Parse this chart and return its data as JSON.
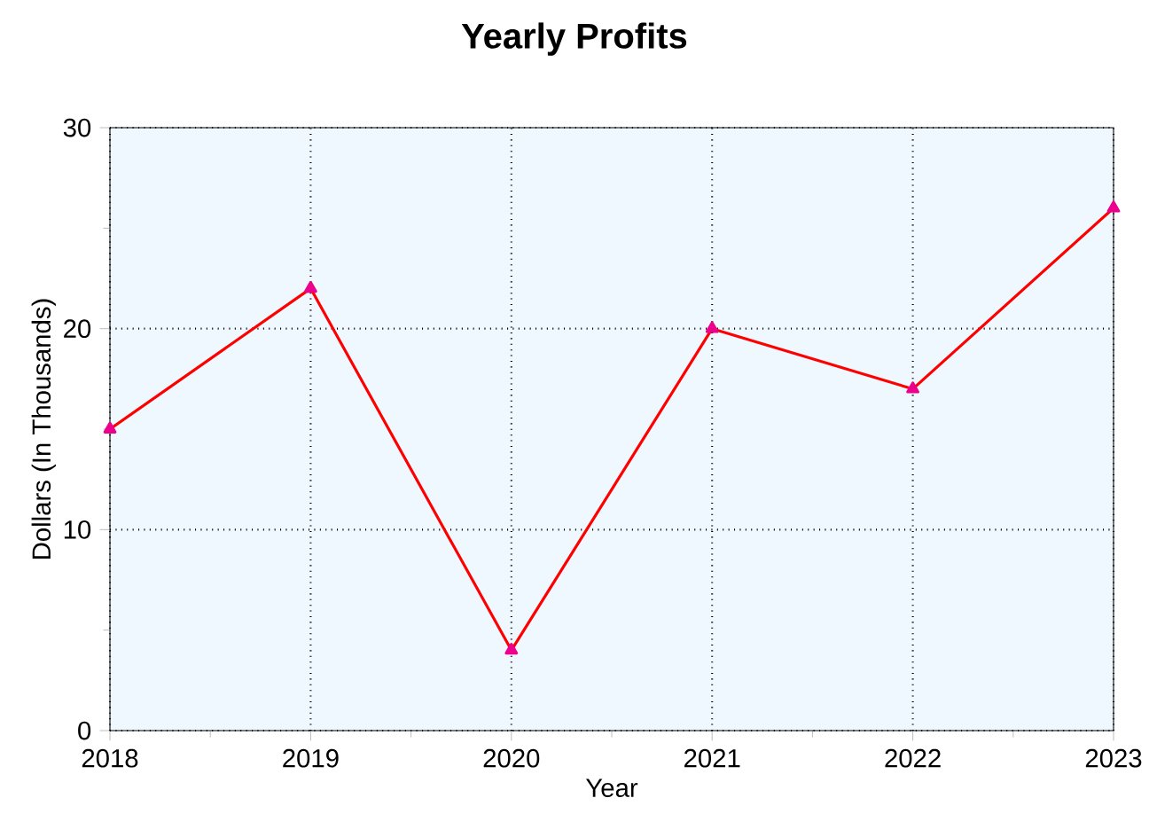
{
  "chart_data": {
    "type": "line",
    "title": "Yearly Profits",
    "xlabel": "Year",
    "ylabel": "Dollars (In Thousands)",
    "x": [
      2018,
      2019,
      2020,
      2021,
      2022,
      2023
    ],
    "series": [
      {
        "color": "#ff0000",
        "values": [
          15,
          22,
          4,
          20,
          17,
          26
        ]
      }
    ],
    "xlim": [
      2018,
      2023
    ],
    "xticks": [
      2018,
      2019,
      2020,
      2021,
      2022,
      2023
    ],
    "ylim": [
      0,
      30
    ],
    "yticks": [
      0,
      10,
      20,
      30
    ],
    "grid": true,
    "marker": "triangle",
    "line_style": "solid"
  }
}
